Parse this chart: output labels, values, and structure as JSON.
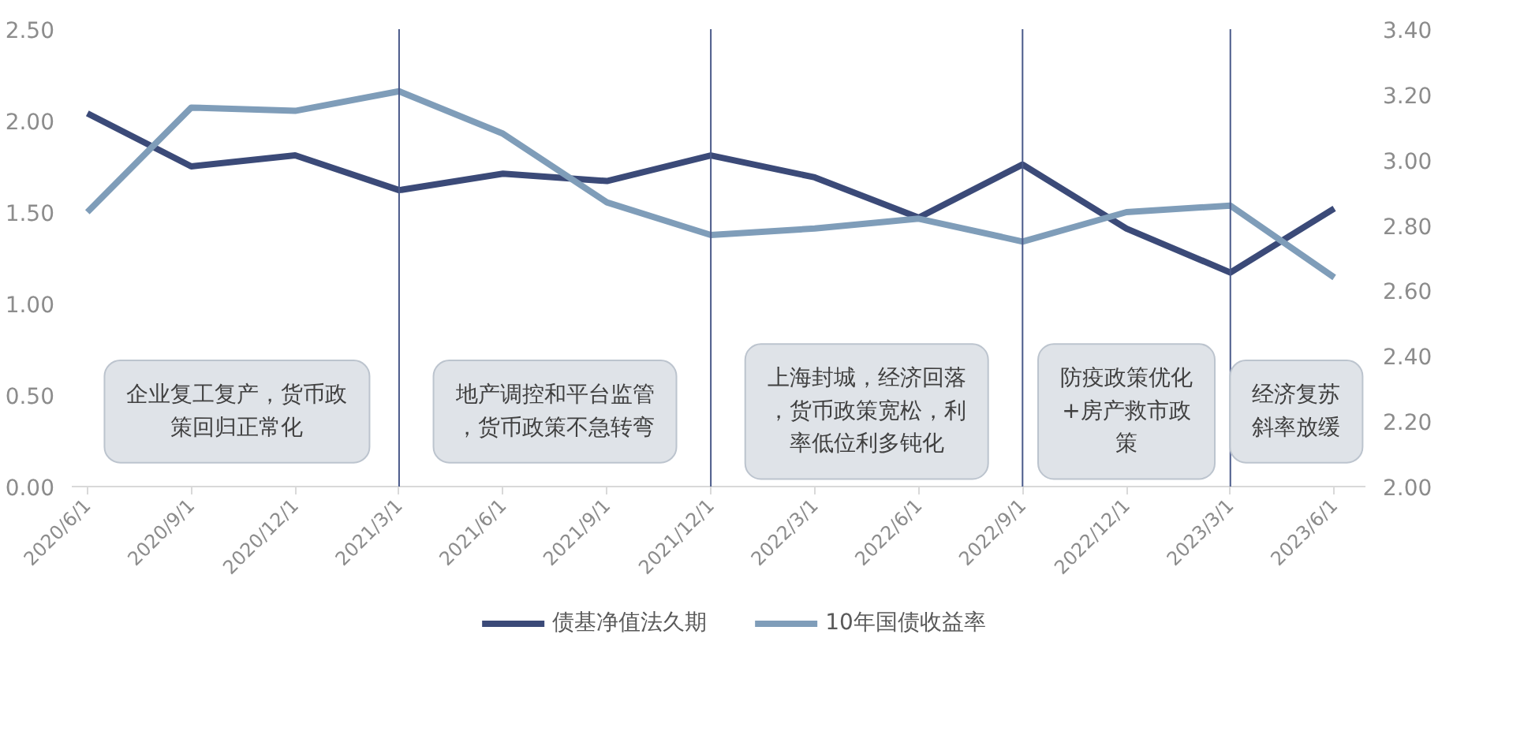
{
  "chart_data": {
    "type": "line",
    "categories": [
      "2020/6/1",
      "2020/9/1",
      "2020/12/1",
      "2021/3/1",
      "2021/6/1",
      "2021/9/1",
      "2021/12/1",
      "2022/3/1",
      "2022/6/1",
      "2022/9/1",
      "2022/12/1",
      "2023/3/1",
      "2023/6/1"
    ],
    "series": [
      {
        "name": "债基净值法久期",
        "color": "#3b4a78",
        "values": [
          2.04,
          1.75,
          1.81,
          1.62,
          1.71,
          1.67,
          1.81,
          1.69,
          1.47,
          1.76,
          1.41,
          1.17,
          1.52
        ]
      },
      {
        "name": "10年国债收益率",
        "color": "#7f9db9",
        "axis": "y2",
        "values": [
          2.84,
          3.16,
          3.15,
          3.21,
          3.08,
          2.87,
          2.77,
          2.79,
          2.82,
          2.75,
          2.84,
          2.86,
          2.64
        ]
      }
    ],
    "ylim": [
      0,
      2.5
    ],
    "yticks": [
      {
        "value": 0,
        "label": "0.00"
      },
      {
        "value": 0.5,
        "label": "0.50"
      },
      {
        "value": 1,
        "label": "1.00"
      },
      {
        "value": 1.5,
        "label": "1.50"
      },
      {
        "value": 2,
        "label": "2.00"
      },
      {
        "value": 2.5,
        "label": "2.50"
      }
    ],
    "y2lim": [
      2.0,
      3.4
    ],
    "y2ticks": [
      {
        "value": 2.0,
        "label": "2.00"
      },
      {
        "value": 2.2,
        "label": "2.20"
      },
      {
        "value": 2.4,
        "label": "2.40"
      },
      {
        "value": 2.6,
        "label": "2.60"
      },
      {
        "value": 2.8,
        "label": "2.80"
      },
      {
        "value": 3.0,
        "label": "3.00"
      },
      {
        "value": 3.2,
        "label": "3.20"
      },
      {
        "value": 3.4,
        "label": "3.40"
      }
    ],
    "ref_lines": [
      {
        "axis": "x",
        "value": "2021/3/1",
        "color": "#4a5a8a"
      },
      {
        "axis": "x",
        "value": "2021/12/1",
        "color": "#4a5a8a"
      },
      {
        "axis": "x",
        "value": "2022/9/1",
        "color": "#4a5a8a"
      },
      {
        "axis": "x",
        "value": "2023/3/1",
        "color": "#4a5a8a"
      }
    ],
    "annotations": [
      "企业复工复产，货币政策回归正常化",
      "地产调控和平台监管，货币政策不急转弯",
      "上海封城，经济回落，货币政策宽松，利率低位利多钝化",
      "防疫政策优化+房产救市政策",
      "经济复苏斜率放缓"
    ],
    "grid": false,
    "legend": "bottom",
    "marker": "none",
    "line_style": "solid"
  }
}
